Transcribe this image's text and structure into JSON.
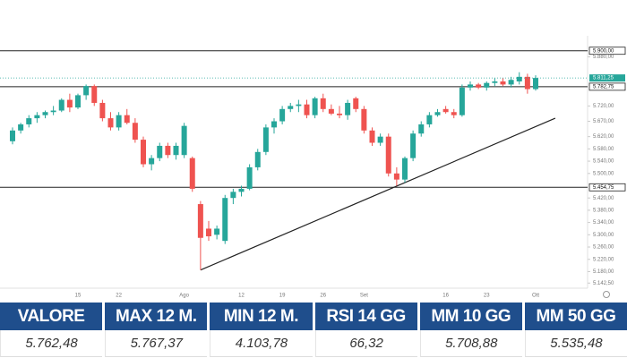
{
  "chart_data": {
    "type": "candlestick",
    "categories": [
      null,
      null,
      null,
      null,
      null,
      null,
      null,
      null,
      "15",
      null,
      null,
      null,
      null,
      "22",
      null,
      null,
      null,
      null,
      null,
      null,
      null,
      "Ago",
      null,
      null,
      null,
      null,
      null,
      null,
      "12",
      null,
      null,
      null,
      null,
      "19",
      null,
      null,
      null,
      null,
      "26",
      null,
      null,
      null,
      null,
      "Set",
      null,
      null,
      null,
      null,
      null,
      null,
      null,
      null,
      null,
      "16",
      null,
      null,
      null,
      null,
      "23",
      null,
      null,
      null,
      null,
      null,
      "Ott"
    ],
    "open": [
      5605,
      5640,
      5660,
      5680,
      5690,
      5700,
      5705,
      5740,
      5715,
      5755,
      5785,
      5730,
      5680,
      5650,
      5690,
      5665,
      5610,
      5530,
      5550,
      5590,
      5560,
      5560,
      5550,
      5400,
      5320,
      5300,
      5280,
      5420,
      5440,
      5450,
      5520,
      5570,
      5650,
      5670,
      5710,
      5720,
      5725,
      5690,
      5745,
      5710,
      5695,
      5690,
      5745,
      5710,
      5640,
      5600,
      5620,
      5500,
      5480,
      5550,
      5630,
      5660,
      5690,
      5710,
      5700,
      5690,
      5780,
      5790,
      5780,
      5795,
      5800,
      5790,
      5800,
      5815,
      5775
    ],
    "high": [
      5650,
      5665,
      5690,
      5700,
      5705,
      5720,
      5745,
      5760,
      5760,
      5790,
      5790,
      5740,
      5700,
      5700,
      5710,
      5680,
      5620,
      5560,
      5600,
      5600,
      5600,
      5665,
      5555,
      5410,
      5345,
      5330,
      5430,
      5450,
      5460,
      5530,
      5580,
      5660,
      5680,
      5720,
      5730,
      5740,
      5740,
      5750,
      5760,
      5725,
      5720,
      5740,
      5750,
      5720,
      5650,
      5630,
      5630,
      5520,
      5555,
      5640,
      5670,
      5700,
      5710,
      5720,
      5710,
      5790,
      5800,
      5795,
      5800,
      5810,
      5810,
      5815,
      5830,
      5825,
      5820
    ],
    "low": [
      5595,
      5630,
      5650,
      5665,
      5680,
      5690,
      5700,
      5700,
      5710,
      5740,
      5720,
      5670,
      5640,
      5640,
      5660,
      5600,
      5520,
      5510,
      5540,
      5550,
      5545,
      5550,
      5440,
      5185,
      5280,
      5285,
      5270,
      5400,
      5425,
      5445,
      5510,
      5560,
      5630,
      5660,
      5700,
      5700,
      5680,
      5680,
      5700,
      5690,
      5680,
      5675,
      5700,
      5630,
      5590,
      5590,
      5490,
      5460,
      5470,
      5540,
      5620,
      5650,
      5685,
      5695,
      5680,
      5685,
      5770,
      5775,
      5770,
      5785,
      5785,
      5780,
      5790,
      5760,
      5770
    ],
    "close": [
      5640,
      5660,
      5680,
      5690,
      5700,
      5705,
      5740,
      5715,
      5755,
      5785,
      5730,
      5680,
      5650,
      5690,
      5665,
      5610,
      5530,
      5550,
      5590,
      5560,
      5590,
      5655,
      5450,
      5290,
      5295,
      5320,
      5420,
      5440,
      5450,
      5520,
      5570,
      5650,
      5670,
      5710,
      5720,
      5725,
      5690,
      5745,
      5710,
      5695,
      5690,
      5730,
      5710,
      5640,
      5600,
      5620,
      5500,
      5480,
      5550,
      5630,
      5660,
      5690,
      5700,
      5700,
      5690,
      5780,
      5790,
      5780,
      5795,
      5800,
      5790,
      5805,
      5815,
      5775,
      5811.25
    ],
    "up_color": "#26a69a",
    "down_color": "#ef5350",
    "ylim": [
      5120,
      5940
    ],
    "yticks": [
      {
        "value": 5880,
        "label": "5.880,00"
      },
      {
        "value": 5720,
        "label": "5.720,00"
      },
      {
        "value": 5670,
        "label": "5.670,00"
      },
      {
        "value": 5620,
        "label": "5.620,00"
      },
      {
        "value": 5580,
        "label": "5.580,00"
      },
      {
        "value": 5540,
        "label": "5.540,00"
      },
      {
        "value": 5500,
        "label": "5.500,00"
      },
      {
        "value": 5420,
        "label": "5.420,00"
      },
      {
        "value": 5380,
        "label": "5.380,00"
      },
      {
        "value": 5340,
        "label": "5.340,00"
      },
      {
        "value": 5300,
        "label": "5.300,00"
      },
      {
        "value": 5260,
        "label": "5.260,00"
      },
      {
        "value": 5220,
        "label": "5.220,00"
      },
      {
        "value": 5180,
        "label": "5.180,00"
      },
      {
        "value": 5142.5,
        "label": "5.142,50"
      }
    ],
    "levels": [
      {
        "value": 5900,
        "label": "5.900,00"
      },
      {
        "value": 5782.75,
        "label": "5.782,75"
      },
      {
        "value": 5454.75,
        "label": "5.454,75"
      }
    ],
    "last_price": {
      "value": 5811.25,
      "label": "5.811,25"
    },
    "trendline": {
      "x": [
        23,
        66.4
      ],
      "y": [
        5185,
        5680
      ]
    }
  },
  "table": {
    "headers": [
      "VALORE",
      "MAX 12 M.",
      "MIN 12 M.",
      "RSI 14 GG",
      "MM 10 GG",
      "MM 50 GG"
    ],
    "values": [
      "5.762,48",
      "5.767,37",
      "4.103,78",
      "66,32",
      "5.708,88",
      "5.535,48"
    ]
  }
}
